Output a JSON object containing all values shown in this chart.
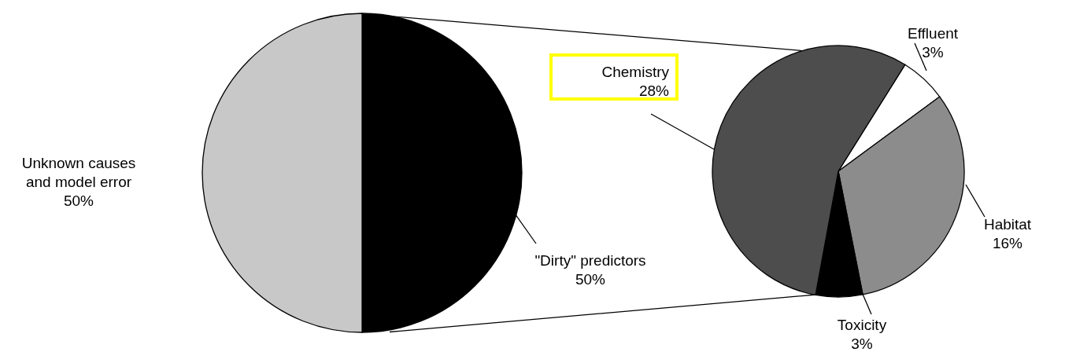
{
  "chart_data": [
    {
      "type": "pie",
      "categories": [
        "\"Dirty\" predictors",
        "Unknown causes and model error"
      ],
      "values": [
        50,
        50
      ],
      "colors": [
        "#000000",
        "#c8c8c8"
      ],
      "value_labels": [
        "50%",
        "50%"
      ]
    },
    {
      "type": "pie",
      "categories": [
        "Effluent",
        "Habitat",
        "Toxicity",
        "Chemistry"
      ],
      "values": [
        3,
        16,
        3,
        28
      ],
      "colors": [
        "#ffffff",
        "#8c8c8c",
        "#000000",
        "#4d4d4d"
      ],
      "value_labels": [
        "3%",
        "16%",
        "3%",
        "28%"
      ]
    }
  ]
}
